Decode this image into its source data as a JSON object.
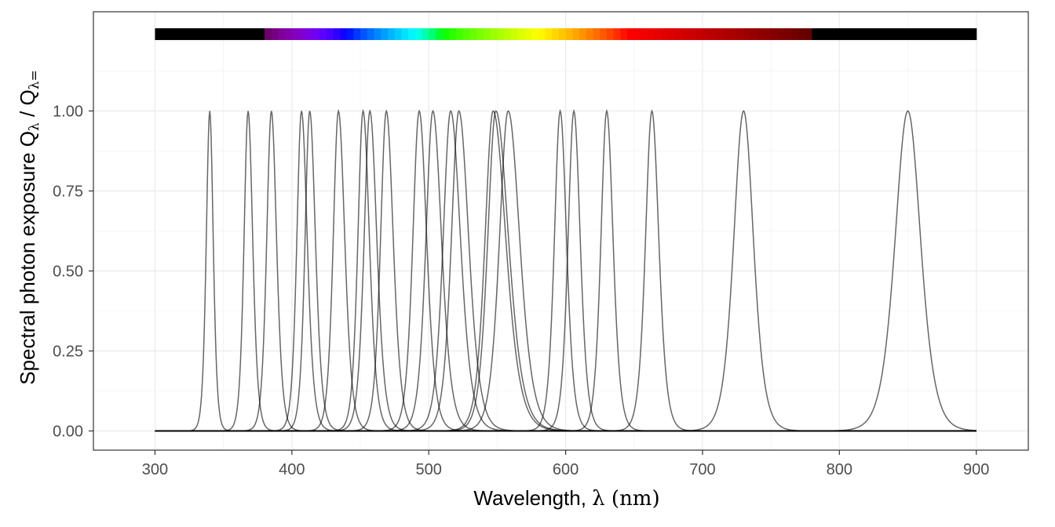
{
  "chart_data": {
    "type": "line",
    "xlabel_text": "Wavelength, ",
    "xlabel_symbol": "λ",
    "xlabel_unit": " (nm)",
    "ylabel_text": "Spectral  photon  exposure  ",
    "ylabel_symbol": "Q",
    "ylabel_sub1": "λ",
    "ylabel_slash": " / ",
    "ylabel_sub2": "λ=",
    "xlim": [
      255,
      938
    ],
    "ylim": [
      -0.06,
      1.31
    ],
    "x_ticks": [
      300,
      400,
      500,
      600,
      700,
      800,
      900
    ],
    "x_tick_labels": [
      "300",
      "400",
      "500",
      "600",
      "700",
      "800",
      "900"
    ],
    "y_ticks": [
      0,
      0.25,
      0.5,
      0.75,
      1.0
    ],
    "y_tick_labels": [
      "0.00",
      "0.25",
      "0.50",
      "0.75",
      "1.00"
    ],
    "grid": true,
    "color_bar": {
      "from": 300,
      "to": 900,
      "y": 1.24
    },
    "series": [
      {
        "peak": 340,
        "hw_left": 6,
        "hw_right": 6,
        "range": [
          300,
          900
        ]
      },
      {
        "peak": 368,
        "hw_left": 7,
        "hw_right": 8,
        "range": [
          300,
          900
        ]
      },
      {
        "peak": 385,
        "hw_left": 8,
        "hw_right": 9,
        "range": [
          300,
          900
        ]
      },
      {
        "peak": 407,
        "hw_left": 8,
        "hw_right": 10,
        "range": [
          300,
          900
        ]
      },
      {
        "peak": 413,
        "hw_left": 8,
        "hw_right": 10,
        "range": [
          300,
          900
        ]
      },
      {
        "peak": 434,
        "hw_left": 9,
        "hw_right": 11,
        "range": [
          300,
          900
        ]
      },
      {
        "peak": 452,
        "hw_left": 9,
        "hw_right": 11,
        "range": [
          300,
          900
        ]
      },
      {
        "peak": 457,
        "hw_left": 10,
        "hw_right": 12,
        "range": [
          300,
          900
        ]
      },
      {
        "peak": 469,
        "hw_left": 10,
        "hw_right": 12,
        "range": [
          300,
          900
        ]
      },
      {
        "peak": 493,
        "hw_left": 11,
        "hw_right": 13,
        "range": [
          300,
          900
        ]
      },
      {
        "peak": 503,
        "hw_left": 12,
        "hw_right": 15,
        "range": [
          300,
          900
        ]
      },
      {
        "peak": 516,
        "hw_left": 13,
        "hw_right": 17,
        "range": [
          300,
          900
        ]
      },
      {
        "peak": 522,
        "hw_left": 13,
        "hw_right": 17,
        "range": [
          300,
          900
        ]
      },
      {
        "peak": 547,
        "hw_left": 14,
        "hw_right": 22,
        "range": [
          300,
          900
        ]
      },
      {
        "peak": 549,
        "hw_left": 14,
        "hw_right": 22,
        "range": [
          300,
          900
        ]
      },
      {
        "peak": 558,
        "hw_left": 15,
        "hw_right": 20,
        "range": [
          300,
          900
        ]
      },
      {
        "peak": 596,
        "hw_left": 10,
        "hw_right": 11,
        "range": [
          300,
          900
        ]
      },
      {
        "peak": 606,
        "hw_left": 10,
        "hw_right": 11,
        "range": [
          300,
          900
        ]
      },
      {
        "peak": 630,
        "hw_left": 10,
        "hw_right": 11,
        "range": [
          300,
          900
        ]
      },
      {
        "peak": 663,
        "hw_left": 11,
        "hw_right": 12,
        "range": [
          300,
          900
        ]
      },
      {
        "peak": 730,
        "hw_left": 17,
        "hw_right": 17,
        "range": [
          300,
          900
        ]
      },
      {
        "peak": 850,
        "hw_left": 22,
        "hw_right": 22,
        "range": [
          300,
          900
        ]
      }
    ]
  }
}
